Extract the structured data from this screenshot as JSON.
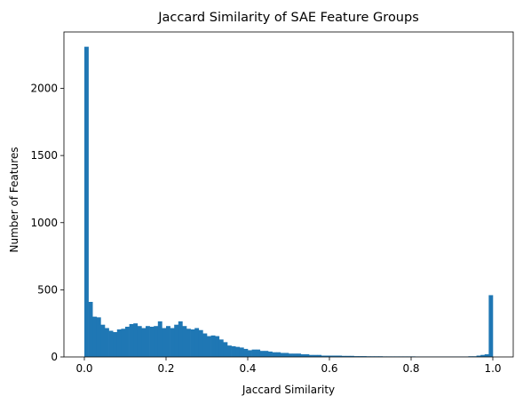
{
  "chart_data": {
    "type": "bar",
    "title": "Jaccard Similarity of SAE Feature Groups",
    "xlabel": "Jaccard Similarity",
    "ylabel": "Number of Features",
    "xlim": [
      -0.05,
      1.05
    ],
    "ylim": [
      0,
      2420
    ],
    "bin_width": 0.01,
    "x_ticks": [
      0.0,
      0.2,
      0.4,
      0.6,
      0.8,
      1.0
    ],
    "x_tick_labels": [
      "0.0",
      "0.2",
      "0.4",
      "0.6",
      "0.8",
      "1.0"
    ],
    "y_ticks": [
      0,
      500,
      1000,
      1500,
      2000
    ],
    "y_tick_labels": [
      "0",
      "500",
      "1000",
      "1500",
      "2000"
    ],
    "bar_color": "#1f77b4",
    "grid": false,
    "legend": "none",
    "bins": [
      0.0,
      0.01,
      0.02,
      0.03,
      0.04,
      0.05,
      0.06,
      0.07,
      0.08,
      0.09,
      0.1,
      0.11,
      0.12,
      0.13,
      0.14,
      0.15,
      0.16,
      0.17,
      0.18,
      0.19,
      0.2,
      0.21,
      0.22,
      0.23,
      0.24,
      0.25,
      0.26,
      0.27,
      0.28,
      0.29,
      0.3,
      0.31,
      0.32,
      0.33,
      0.34,
      0.35,
      0.36,
      0.37,
      0.38,
      0.39,
      0.4,
      0.41,
      0.42,
      0.43,
      0.44,
      0.45,
      0.46,
      0.47,
      0.48,
      0.49,
      0.5,
      0.51,
      0.52,
      0.53,
      0.54,
      0.55,
      0.56,
      0.57,
      0.58,
      0.59,
      0.6,
      0.61,
      0.62,
      0.63,
      0.64,
      0.65,
      0.66,
      0.67,
      0.68,
      0.69,
      0.7,
      0.71,
      0.72,
      0.73,
      0.74,
      0.75,
      0.76,
      0.77,
      0.78,
      0.79,
      0.8,
      0.81,
      0.82,
      0.83,
      0.84,
      0.85,
      0.86,
      0.87,
      0.88,
      0.89,
      0.9,
      0.91,
      0.92,
      0.93,
      0.94,
      0.95,
      0.96,
      0.97,
      0.98,
      0.99
    ],
    "values": [
      2310,
      410,
      300,
      295,
      240,
      215,
      195,
      185,
      205,
      210,
      225,
      245,
      250,
      230,
      215,
      230,
      225,
      230,
      265,
      215,
      230,
      215,
      240,
      265,
      230,
      210,
      205,
      215,
      200,
      175,
      155,
      160,
      155,
      130,
      110,
      85,
      80,
      75,
      70,
      60,
      50,
      55,
      55,
      45,
      45,
      40,
      35,
      35,
      30,
      30,
      25,
      25,
      25,
      20,
      20,
      15,
      15,
      15,
      10,
      10,
      10,
      10,
      10,
      8,
      8,
      8,
      6,
      6,
      6,
      5,
      5,
      5,
      5,
      4,
      4,
      4,
      4,
      4,
      4,
      4,
      4,
      3,
      3,
      3,
      3,
      3,
      3,
      3,
      3,
      3,
      3,
      3,
      3,
      3,
      5,
      5,
      10,
      15,
      20,
      460
    ]
  }
}
